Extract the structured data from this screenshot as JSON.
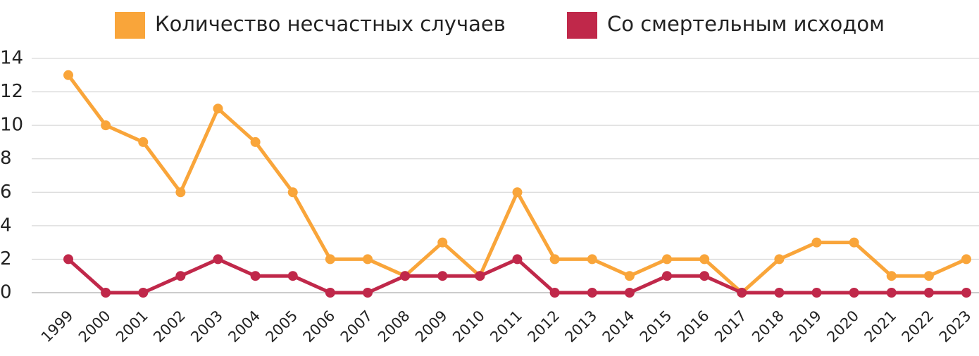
{
  "chart_data": {
    "type": "line",
    "categories": [
      "1999",
      "2000",
      "2001",
      "2002",
      "2003",
      "2004",
      "2005",
      "2006",
      "2007",
      "2008",
      "2009",
      "2010",
      "2011",
      "2012",
      "2013",
      "2014",
      "2015",
      "2016",
      "2017",
      "2018",
      "2019",
      "2020",
      "2021",
      "2022",
      "2023"
    ],
    "series": [
      {
        "name": "Количество несчастных случаев",
        "color": "#f9a53a",
        "values": [
          13,
          10,
          9,
          6,
          11,
          9,
          6,
          2,
          2,
          1,
          3,
          1,
          6,
          2,
          2,
          1,
          2,
          2,
          0,
          2,
          3,
          3,
          1,
          1,
          2
        ]
      },
      {
        "name": "Со смертельным исходом",
        "color": "#c0284a",
        "values": [
          2,
          0,
          0,
          1,
          2,
          1,
          1,
          0,
          0,
          1,
          1,
          1,
          2,
          0,
          0,
          0,
          1,
          1,
          0,
          0,
          0,
          0,
          0,
          0,
          0
        ]
      }
    ],
    "ylim": [
      0,
      14
    ],
    "yticks": [
      0,
      2,
      4,
      6,
      8,
      10,
      12,
      14
    ],
    "grid": true,
    "legend": "top"
  }
}
